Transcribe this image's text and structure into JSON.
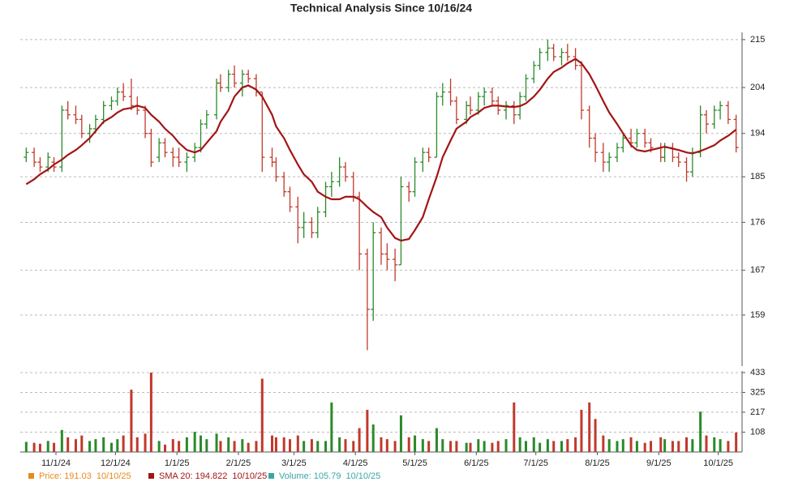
{
  "chart_data": {
    "type": "ohlc",
    "title": "Technical Analysis Since 10/16/24",
    "x": [
      "10/17/24",
      "10/21/24",
      "10/24/24",
      "10/28/24",
      "10/31/24",
      "11/4/24",
      "11/7/24",
      "11/11/24",
      "11/14/24",
      "11/18/24",
      "11/21/24",
      "11/25/24",
      "11/29/24",
      "12/2/24",
      "12/5/24",
      "12/9/24",
      "12/12/24",
      "12/16/24",
      "12/19/24",
      "12/23/24",
      "12/26/24",
      "12/30/24",
      "1/2/25",
      "1/6/25",
      "1/10/25",
      "1/13/25",
      "1/16/25",
      "1/21/25",
      "1/23/25",
      "1/27/25",
      "1/30/25",
      "2/3/25",
      "2/6/25",
      "2/10/25",
      "2/13/25",
      "2/18/25",
      "2/20/25",
      "2/24/25",
      "2/27/25",
      "3/3/25",
      "3/6/25",
      "3/10/25",
      "3/13/25",
      "3/17/25",
      "3/20/25",
      "3/24/25",
      "3/27/25",
      "3/31/25",
      "4/3/25",
      "4/7/25",
      "4/10/25",
      "4/14/25",
      "4/17/25",
      "4/21/25",
      "4/24/25",
      "4/28/25",
      "5/1/25",
      "5/5/25",
      "5/8/25",
      "5/12/25",
      "5/15/25",
      "5/19/25",
      "5/22/25",
      "5/27/25",
      "5/29/25",
      "6/2/25",
      "6/5/25",
      "6/9/25",
      "6/12/25",
      "6/16/25",
      "6/20/25",
      "6/23/25",
      "6/26/25",
      "6/30/25",
      "7/3/25",
      "7/7/25",
      "7/10/25",
      "7/14/25",
      "7/17/25",
      "7/21/25",
      "7/24/25",
      "7/28/25",
      "7/31/25",
      "8/4/25",
      "8/7/25",
      "8/11/25",
      "8/14/25",
      "8/18/25",
      "8/21/25",
      "8/25/25",
      "8/28/25",
      "9/2/25",
      "9/4/25",
      "9/8/25",
      "9/11/25",
      "9/15/25",
      "9/18/25",
      "9/22/25",
      "9/25/25",
      "9/29/25",
      "10/2/25",
      "10/6/25",
      "10/10/25"
    ],
    "open": [
      189,
      190,
      188,
      187,
      188,
      187,
      199,
      198,
      197,
      194,
      195,
      197,
      200,
      201,
      203,
      202,
      200,
      199,
      194,
      189,
      192,
      190,
      189,
      188,
      189,
      191,
      196,
      198,
      205,
      204,
      207,
      205,
      207,
      206,
      203,
      189,
      188,
      185,
      182,
      179,
      175,
      176,
      174,
      178,
      183,
      184,
      187,
      185,
      181,
      170,
      160,
      174,
      170,
      169,
      168,
      183,
      182,
      188,
      190,
      189,
      202,
      203,
      201,
      197,
      200,
      199,
      202,
      203,
      201,
      199,
      200,
      198,
      202,
      206,
      209,
      212,
      213,
      211,
      212,
      211,
      209,
      199,
      193,
      190,
      188,
      189,
      191,
      193,
      192,
      194,
      192,
      191,
      189,
      191,
      189,
      188,
      186,
      190,
      198,
      196,
      199,
      200,
      197
    ],
    "high": [
      191,
      191,
      189,
      190,
      189,
      200,
      201,
      200,
      198,
      196,
      198,
      201,
      202,
      204,
      205,
      206,
      202,
      200,
      195,
      193,
      193,
      191,
      191,
      190,
      192,
      197,
      199,
      206,
      207,
      208,
      209,
      208,
      208,
      207,
      203,
      191,
      189,
      186,
      183,
      181,
      178,
      177,
      179,
      184,
      186,
      189,
      188,
      186,
      182,
      171,
      176,
      175,
      172,
      171,
      185,
      184,
      189,
      191,
      191,
      203,
      205,
      206,
      202,
      201,
      202,
      203,
      204,
      204,
      202,
      201,
      201,
      203,
      207,
      210,
      213,
      215,
      214,
      213,
      214,
      213,
      210,
      200,
      194,
      192,
      190,
      192,
      194,
      195,
      195,
      195,
      193,
      192,
      192,
      192,
      190,
      189,
      191,
      200,
      199,
      200,
      201,
      201,
      198
    ],
    "low": [
      188,
      187,
      186,
      186,
      186,
      186,
      197,
      196,
      193,
      192,
      194,
      196,
      199,
      200,
      201,
      199,
      198,
      193,
      187,
      188,
      189,
      187,
      187,
      186,
      188,
      190,
      195,
      197,
      203,
      203,
      204,
      202,
      205,
      202,
      186,
      187,
      184,
      181,
      178,
      172,
      173,
      173,
      173,
      177,
      181,
      183,
      184,
      180,
      167,
      153,
      158,
      168,
      167,
      165,
      168,
      180,
      181,
      186,
      188,
      189,
      200,
      200,
      196,
      196,
      198,
      198,
      200,
      200,
      198,
      197,
      196,
      197,
      201,
      205,
      208,
      210,
      210,
      209,
      210,
      208,
      197,
      191,
      188,
      186,
      186,
      188,
      190,
      191,
      191,
      191,
      190,
      188,
      188,
      188,
      187,
      184,
      185,
      189,
      194,
      195,
      197,
      196,
      190
    ],
    "close": [
      190,
      188,
      187,
      189,
      187,
      199,
      198,
      197,
      194,
      195,
      197,
      200,
      201,
      203,
      202,
      200,
      199,
      194,
      188,
      192,
      190,
      189,
      188,
      189,
      191,
      196,
      198,
      205,
      204,
      207,
      205,
      207,
      206,
      203,
      189,
      188,
      185,
      182,
      179,
      175,
      176,
      174,
      178,
      183,
      184,
      187,
      185,
      181,
      170,
      160,
      174,
      170,
      169,
      168,
      183,
      182,
      188,
      190,
      189,
      202,
      203,
      201,
      197,
      200,
      199,
      202,
      203,
      201,
      199,
      200,
      198,
      202,
      206,
      209,
      212,
      213,
      211,
      212,
      211,
      209,
      199,
      193,
      190,
      188,
      189,
      191,
      193,
      192,
      194,
      192,
      191,
      189,
      191,
      189,
      188,
      186,
      190,
      198,
      196,
      199,
      200,
      197,
      191.03
    ],
    "up_color": "#2a8a2a",
    "down_color": "#c0392b",
    "sma": {
      "name": "SMA 20",
      "color": "#a31515",
      "values": [
        183.5,
        184.5,
        185.5,
        186.5,
        187.5,
        188.5,
        189.5,
        190.5,
        191.5,
        193,
        194.5,
        196.5,
        197.5,
        198.5,
        199.2,
        199.5,
        200,
        199.5,
        198,
        196.5,
        195,
        193.5,
        192,
        190.5,
        190,
        190.5,
        192,
        194.5,
        196.5,
        199,
        202,
        204,
        204.5,
        203.5,
        202,
        198,
        195.5,
        193,
        190.5,
        187.5,
        185.5,
        184,
        182,
        181,
        180.5,
        180.5,
        181,
        181,
        180.5,
        179,
        178,
        177,
        175,
        173,
        172.5,
        172.8,
        174.5,
        177,
        180.5,
        185,
        189,
        192.5,
        195,
        196.5,
        197.5,
        198.5,
        199.5,
        200,
        200,
        199.8,
        199.7,
        199.9,
        200.5,
        202,
        203.5,
        206,
        207.5,
        208.5,
        209.5,
        210.5,
        209.5,
        207,
        204.5,
        201,
        198.5,
        196,
        194,
        191.5,
        190.5,
        190.2,
        190.5,
        191,
        191.2,
        190.8,
        190.5,
        190,
        189.8,
        190.3,
        190.8,
        191.5,
        192.5,
        193.5,
        194.822
      ]
    },
    "volume": {
      "name": "Volume",
      "color": "#3aa6a6",
      "values": [
        55,
        50,
        45,
        60,
        50,
        120,
        80,
        70,
        90,
        60,
        70,
        80,
        50,
        70,
        90,
        340,
        80,
        100,
        433,
        60,
        40,
        70,
        60,
        80,
        110,
        90,
        70,
        100,
        60,
        80,
        60,
        70,
        50,
        60,
        400,
        90,
        80,
        80,
        70,
        90,
        60,
        70,
        60,
        60,
        270,
        80,
        70,
        60,
        130,
        230,
        150,
        80,
        70,
        60,
        200,
        80,
        90,
        70,
        60,
        130,
        70,
        60,
        60,
        50,
        50,
        70,
        60,
        50,
        60,
        70,
        270,
        80,
        60,
        80,
        50,
        70,
        60,
        60,
        70,
        80,
        230,
        270,
        180,
        90,
        70,
        60,
        70,
        80,
        60,
        50,
        60,
        80,
        70,
        60,
        60,
        80,
        70,
        220,
        90,
        80,
        70,
        60,
        105.79
      ]
    },
    "xlim": [
      "10/14/24",
      "10/13/25"
    ],
    "xticks": [
      "11/1/24",
      "12/1/24",
      "1/1/25",
      "2/1/25",
      "3/1/25",
      "4/1/25",
      "5/1/25",
      "6/1/25",
      "7/1/25",
      "8/1/25",
      "9/1/25",
      "10/1/25"
    ],
    "ylim": [
      150.35,
      216.7
    ],
    "yticks": [
      159,
      167,
      176,
      185,
      194,
      204,
      215
    ],
    "log_scale": true,
    "y2lim": [
      0,
      433
    ],
    "y2ticks": [
      108,
      217,
      325,
      433
    ],
    "grid": true,
    "legend": [
      {
        "label": "Price: 191.03",
        "date": "10/10/25",
        "color": "#e88a1a"
      },
      {
        "label": "SMA 20: 194.822",
        "date": "10/10/25",
        "color": "#a31515"
      },
      {
        "label": "Volume: 105.79",
        "date": "10/10/25",
        "color": "#3aa6a6"
      }
    ]
  }
}
